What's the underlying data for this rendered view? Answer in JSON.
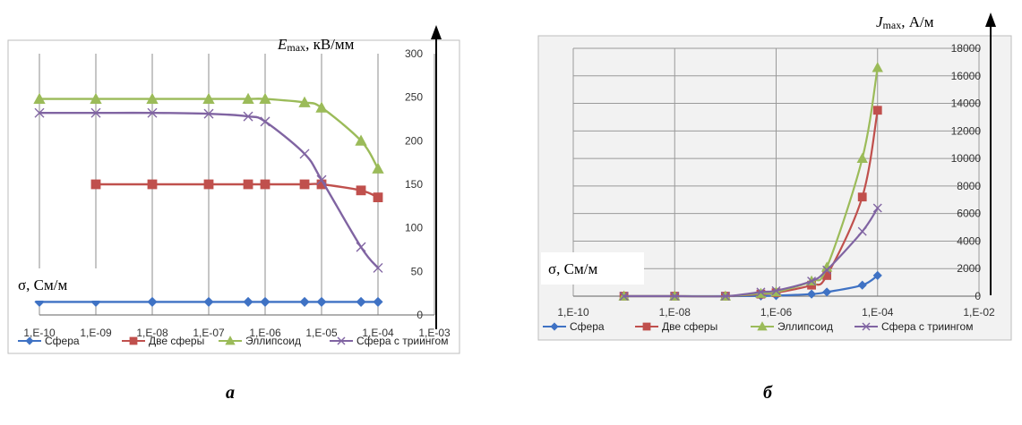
{
  "panels": {
    "a": "а",
    "b": "б"
  },
  "chart_data": [
    {
      "type": "line",
      "x_scale": "log",
      "xlim": [
        1e-10,
        0.001
      ],
      "x_tick_labels": [
        "1,E-10",
        "1,E-09",
        "1,E-08",
        "1,E-07",
        "1,E-06",
        "1,E-05",
        "1,E-04",
        "1,E-03"
      ],
      "ylim": [
        0,
        300
      ],
      "y_ticks": [
        0,
        50,
        100,
        150,
        200,
        250,
        300
      ],
      "y_title": "E",
      "y_title_sub": "max",
      "y_title_unit": ", кВ/мм",
      "x_title": "σ, См/м",
      "grid": "vertical",
      "legend_position": "bottom",
      "series": [
        {
          "name": "Сфера",
          "color": "#3f72c4",
          "marker": "diamond",
          "x": [
            1e-10,
            1e-09,
            1e-08,
            1e-07,
            5e-07,
            1e-06,
            5e-06,
            1e-05,
            5e-05,
            0.0001
          ],
          "y": [
            15,
            15,
            15,
            15,
            15,
            15,
            15,
            15,
            15,
            15
          ]
        },
        {
          "name": "Две сферы",
          "color": "#c0504d",
          "marker": "square",
          "x": [
            1e-09,
            1e-08,
            1e-07,
            5e-07,
            1e-06,
            5e-06,
            1e-05,
            5e-05,
            0.0001
          ],
          "y": [
            150,
            150,
            150,
            150,
            150,
            150,
            150,
            143,
            135
          ]
        },
        {
          "name": "Эллипсоид",
          "color": "#9bbb59",
          "marker": "triangle",
          "x": [
            1e-10,
            1e-09,
            1e-08,
            1e-07,
            5e-07,
            1e-06,
            5e-06,
            1e-05,
            5e-05,
            0.0001
          ],
          "y": [
            248,
            248,
            248,
            248,
            248,
            248,
            244,
            238,
            200,
            168
          ]
        },
        {
          "name": "Сфера с триингом",
          "color": "#8064a2",
          "marker": "x",
          "x": [
            1e-10,
            1e-09,
            1e-08,
            1e-07,
            5e-07,
            1e-06,
            5e-06,
            1e-05,
            5e-05,
            0.0001
          ],
          "y": [
            232,
            232,
            232,
            231,
            228,
            222,
            185,
            155,
            78,
            54
          ]
        }
      ]
    },
    {
      "type": "line",
      "x_scale": "log",
      "xlim": [
        1e-10,
        0.01
      ],
      "x_tick_labels": [
        "1,E-10",
        "1,E-08",
        "1,E-06",
        "1,E-04",
        "1,E-02"
      ],
      "ylim": [
        0,
        18000
      ],
      "y_ticks": [
        0,
        2000,
        4000,
        6000,
        8000,
        10000,
        12000,
        14000,
        16000,
        18000
      ],
      "y_title": "J",
      "y_title_sub": "max",
      "y_title_unit": ", А/м",
      "x_title": "σ, См/м",
      "grid": "both",
      "legend_position": "bottom",
      "series": [
        {
          "name": "Сфера",
          "color": "#3f72c4",
          "marker": "diamond",
          "x": [
            1e-09,
            1e-08,
            1e-07,
            5e-07,
            1e-06,
            5e-06,
            1e-05,
            5e-05,
            0.0001
          ],
          "y": [
            0,
            0,
            0,
            10,
            40,
            150,
            300,
            800,
            1500
          ]
        },
        {
          "name": "Две сферы",
          "color": "#c0504d",
          "marker": "square",
          "x": [
            1e-09,
            1e-08,
            1e-07,
            5e-07,
            1e-06,
            5e-06,
            1e-05,
            5e-05,
            0.0001
          ],
          "y": [
            0,
            0,
            0,
            150,
            250,
            800,
            1500,
            7200,
            13500
          ]
        },
        {
          "name": "Эллипсоид",
          "color": "#9bbb59",
          "marker": "triangle",
          "x": [
            1e-09,
            1e-08,
            1e-07,
            5e-07,
            1e-06,
            5e-06,
            1e-05,
            5e-05,
            0.0001
          ],
          "y": [
            0,
            0,
            0,
            200,
            300,
            1100,
            2100,
            10000,
            16600
          ]
        },
        {
          "name": "Сфера с триингом",
          "color": "#8064a2",
          "marker": "x",
          "x": [
            1e-09,
            1e-08,
            1e-07,
            5e-07,
            1e-06,
            5e-06,
            1e-05,
            5e-05,
            0.0001
          ],
          "y": [
            0,
            0,
            0,
            300,
            400,
            1100,
            1900,
            4700,
            6400
          ]
        }
      ]
    }
  ]
}
